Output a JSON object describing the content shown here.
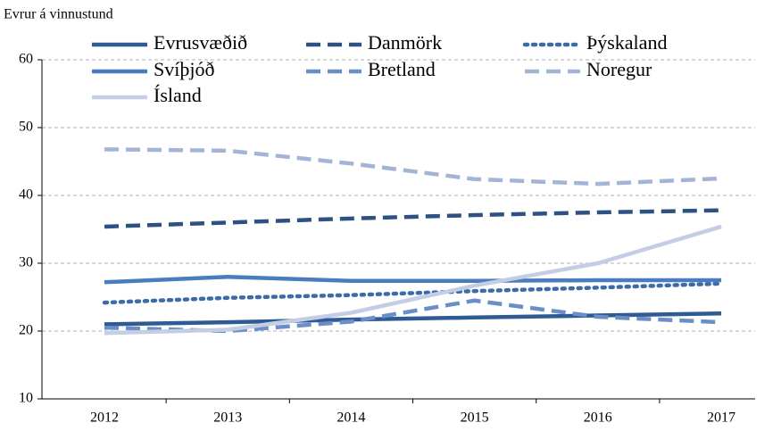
{
  "chart_data": {
    "type": "line",
    "y_label": "Evrur á vinnustund",
    "categories": [
      "2012",
      "2013",
      "2014",
      "2015",
      "2016",
      "2017"
    ],
    "ylim": [
      10,
      60
    ],
    "yticks": [
      10,
      20,
      30,
      40,
      50,
      60
    ],
    "grid": true,
    "series": [
      {
        "name": "Evrusvæðið",
        "color": "#2f5b94",
        "style": "solid",
        "values": [
          21.0,
          21.3,
          21.7,
          22.0,
          22.3,
          22.6
        ]
      },
      {
        "name": "Danmörk",
        "color": "#2e5183",
        "style": "dashed",
        "values": [
          35.4,
          36.0,
          36.6,
          37.1,
          37.5,
          37.8
        ]
      },
      {
        "name": "Þýskaland",
        "color": "#3c6ba6",
        "style": "dotted",
        "values": [
          24.2,
          24.9,
          25.3,
          25.9,
          26.4,
          27.0
        ]
      },
      {
        "name": "Svíþjóð",
        "color": "#4a7cbf",
        "style": "solid",
        "values": [
          27.2,
          28.0,
          27.4,
          27.4,
          27.5,
          27.5
        ]
      },
      {
        "name": "Bretland",
        "color": "#6b8ec6",
        "style": "dashed",
        "values": [
          20.5,
          20.0,
          21.4,
          24.5,
          22.1,
          21.3
        ]
      },
      {
        "name": "Noregur",
        "color": "#a2b5d7",
        "style": "dashed",
        "values": [
          46.8,
          46.6,
          44.7,
          42.4,
          41.7,
          42.5
        ]
      },
      {
        "name": "Ísland",
        "color": "#c3cde3",
        "style": "solid",
        "values": [
          19.7,
          20.2,
          22.7,
          26.7,
          30.0,
          35.4
        ]
      }
    ]
  }
}
